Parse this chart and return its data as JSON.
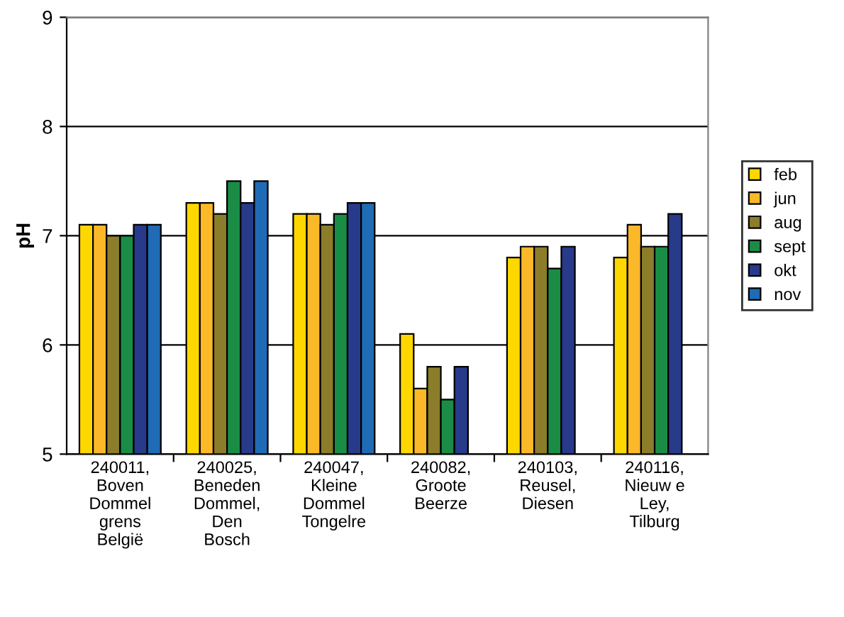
{
  "chart_data": {
    "type": "bar",
    "ylabel": "pH",
    "categories": [
      "240011,\nBoven\nDommel\ngrens\nBelgië",
      "240025,\nBeneden\nDommel,\nDen\nBosch",
      "240047,\nKleine\nDommel\nTongelre",
      "240082,\nGroote\nBeerze",
      "240103,\nReusel,\nDiesen",
      "240116,\nNieuw e\nLey,\nTilburg"
    ],
    "series": [
      {
        "name": "feb",
        "color": "#ffd700",
        "values": [
          7.1,
          7.3,
          7.2,
          6.1,
          6.8,
          6.8
        ]
      },
      {
        "name": "jun",
        "color": "#fbb829",
        "values": [
          7.1,
          7.3,
          7.2,
          5.6,
          6.9,
          7.1
        ]
      },
      {
        "name": "aug",
        "color": "#8b7d2a",
        "values": [
          7.0,
          7.2,
          7.1,
          5.8,
          6.9,
          6.9
        ]
      },
      {
        "name": "sept",
        "color": "#1a8c46",
        "values": [
          7.0,
          7.5,
          7.2,
          5.5,
          6.7,
          6.9
        ]
      },
      {
        "name": "okt",
        "color": "#283a8a",
        "values": [
          7.1,
          7.3,
          7.3,
          5.8,
          6.9,
          7.2
        ]
      },
      {
        "name": "nov",
        "color": "#1f6bb5",
        "values": [
          7.1,
          7.5,
          7.3,
          null,
          null,
          null
        ]
      }
    ],
    "ylim": [
      5,
      9
    ],
    "yticks": [
      5,
      6,
      7,
      8,
      9
    ],
    "grid": "y",
    "legend": "right"
  }
}
